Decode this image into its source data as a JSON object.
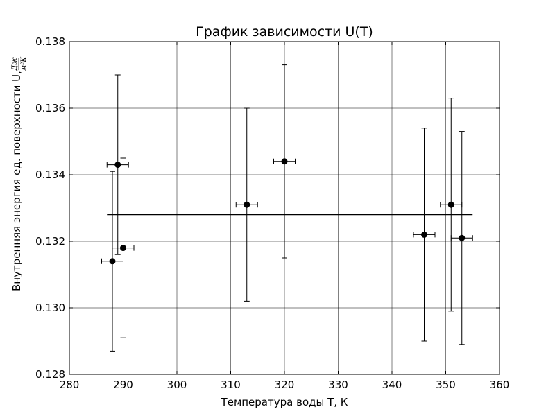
{
  "chart_data": {
    "type": "scatter",
    "title": "График зависимости U(T)",
    "xlabel": "Температура воды T, К",
    "ylabel": "Внутренняя энергия ед. поверхности U, ",
    "ylabel_unit_num": "Дж",
    "ylabel_unit_den": "м²К",
    "xlim": [
      280,
      360
    ],
    "ylim": [
      0.128,
      0.138
    ],
    "xticks": [
      280,
      290,
      300,
      310,
      320,
      330,
      340,
      350,
      360
    ],
    "xtick_labels": [
      "280",
      "290",
      "300",
      "310",
      "320",
      "330",
      "340",
      "350",
      "360"
    ],
    "yticks": [
      0.128,
      0.13,
      0.132,
      0.134,
      0.136,
      0.138
    ],
    "ytick_labels": [
      "0.128",
      "0.130",
      "0.132",
      "0.134",
      "0.136",
      "0.138"
    ],
    "grid": true,
    "mean_line": {
      "y": 0.1328,
      "x": [
        287,
        355
      ]
    },
    "points": [
      {
        "x": 288,
        "y": 0.1314,
        "xerr": 2,
        "yerr": 0.0027
      },
      {
        "x": 289,
        "y": 0.1343,
        "xerr": 2,
        "yerr": 0.0027
      },
      {
        "x": 290,
        "y": 0.1318,
        "xerr": 2,
        "yerr": 0.0027
      },
      {
        "x": 313,
        "y": 0.1331,
        "xerr": 2,
        "yerr": 0.0029
      },
      {
        "x": 320,
        "y": 0.1344,
        "xerr": 2,
        "yerr": 0.0029
      },
      {
        "x": 346,
        "y": 0.1322,
        "xerr": 2,
        "yerr": 0.0032
      },
      {
        "x": 351,
        "y": 0.1331,
        "xerr": 2,
        "yerr": 0.0032
      },
      {
        "x": 353,
        "y": 0.1321,
        "xerr": 2,
        "yerr": 0.0032
      }
    ]
  }
}
